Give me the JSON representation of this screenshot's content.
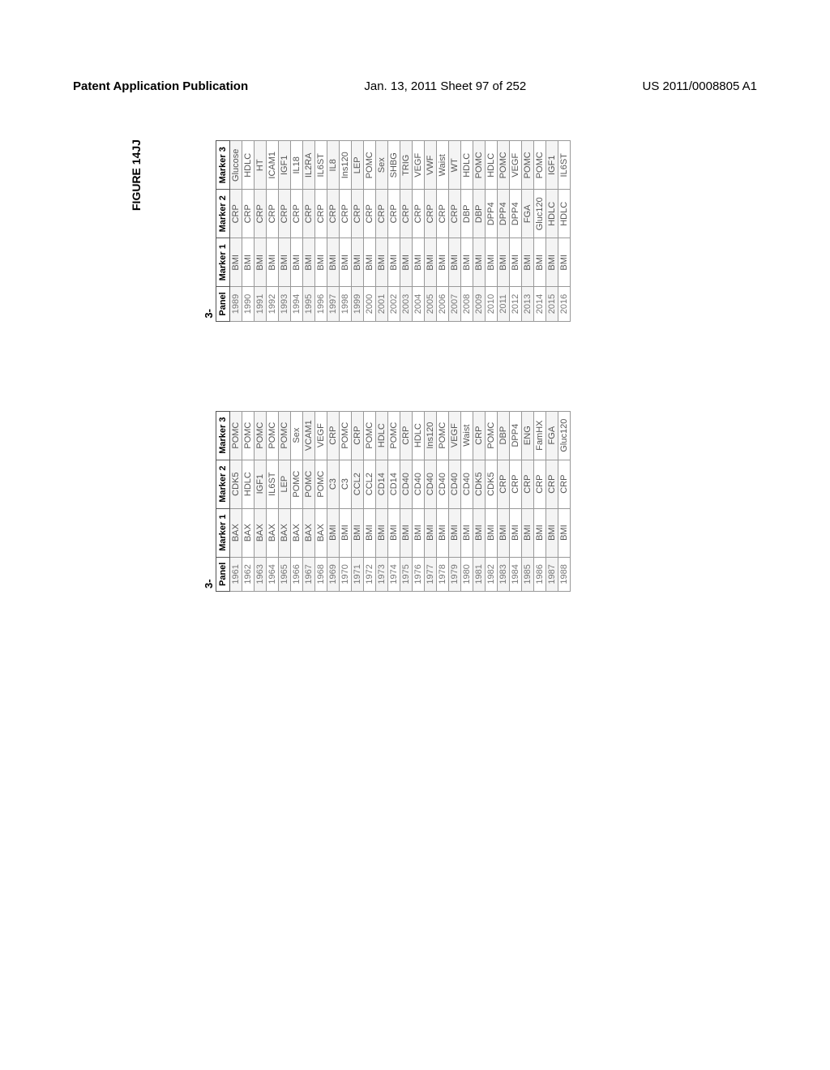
{
  "header": {
    "left": "Patent Application Publication",
    "mid": "Jan. 13, 2011  Sheet 97 of 252",
    "right": "US 2011/0008805 A1"
  },
  "figure_label": "FIGURE 14JJ",
  "panel_prefix": "3-",
  "columns": [
    "Panel",
    "Marker 1",
    "Marker 2",
    "Marker 3"
  ],
  "table1": [
    [
      "1961",
      "BAX",
      "CDK5",
      "POMC"
    ],
    [
      "1962",
      "BAX",
      "HDLC",
      "POMC"
    ],
    [
      "1963",
      "BAX",
      "IGF1",
      "POMC"
    ],
    [
      "1964",
      "BAX",
      "IL6ST",
      "POMC"
    ],
    [
      "1965",
      "BAX",
      "LEP",
      "POMC"
    ],
    [
      "1966",
      "BAX",
      "POMC",
      "Sex"
    ],
    [
      "1967",
      "BAX",
      "POMC",
      "VCAM1"
    ],
    [
      "1968",
      "BAX",
      "POMC",
      "VEGF"
    ],
    [
      "1969",
      "BMI",
      "C3",
      "CRP"
    ],
    [
      "1970",
      "BMI",
      "C3",
      "POMC"
    ],
    [
      "1971",
      "BMI",
      "CCL2",
      "CRP"
    ],
    [
      "1972",
      "BMI",
      "CCL2",
      "POMC"
    ],
    [
      "1973",
      "BMI",
      "CD14",
      "HDLC"
    ],
    [
      "1974",
      "BMI",
      "CD14",
      "POMC"
    ],
    [
      "1975",
      "BMI",
      "CD40",
      "CRP"
    ],
    [
      "1976",
      "BMI",
      "CD40",
      "HDLC"
    ],
    [
      "1977",
      "BMI",
      "CD40",
      "Ins120"
    ],
    [
      "1978",
      "BMI",
      "CD40",
      "POMC"
    ],
    [
      "1979",
      "BMI",
      "CD40",
      "VEGF"
    ],
    [
      "1980",
      "BMI",
      "CD40",
      "Waist"
    ],
    [
      "1981",
      "BMI",
      "CDK5",
      "CRP"
    ],
    [
      "1982",
      "BMI",
      "CDK5",
      "POMC"
    ],
    [
      "1983",
      "BMI",
      "CRP",
      "DBP"
    ],
    [
      "1984",
      "BMI",
      "CRP",
      "DPP4"
    ],
    [
      "1985",
      "BMI",
      "CRP",
      "ENG"
    ],
    [
      "1986",
      "BMI",
      "CRP",
      "FamHX"
    ],
    [
      "1987",
      "BMI",
      "CRP",
      "FGA"
    ],
    [
      "1988",
      "BMI",
      "CRP",
      "Gluc120"
    ]
  ],
  "table2": [
    [
      "1989",
      "BMI",
      "CRP",
      "Glucose"
    ],
    [
      "1990",
      "BMI",
      "CRP",
      "HDLC"
    ],
    [
      "1991",
      "BMI",
      "CRP",
      "HT"
    ],
    [
      "1992",
      "BMI",
      "CRP",
      "ICAM1"
    ],
    [
      "1993",
      "BMI",
      "CRP",
      "IGF1"
    ],
    [
      "1994",
      "BMI",
      "CRP",
      "IL18"
    ],
    [
      "1995",
      "BMI",
      "CRP",
      "IL2RA"
    ],
    [
      "1996",
      "BMI",
      "CRP",
      "IL6ST"
    ],
    [
      "1997",
      "BMI",
      "CRP",
      "IL8"
    ],
    [
      "1998",
      "BMI",
      "CRP",
      "Ins120"
    ],
    [
      "1999",
      "BMI",
      "CRP",
      "LEP"
    ],
    [
      "2000",
      "BMI",
      "CRP",
      "POMC"
    ],
    [
      "2001",
      "BMI",
      "CRP",
      "Sex"
    ],
    [
      "2002",
      "BMI",
      "CRP",
      "SHBG"
    ],
    [
      "2003",
      "BMI",
      "CRP",
      "TRIG"
    ],
    [
      "2004",
      "BMI",
      "CRP",
      "VEGF"
    ],
    [
      "2005",
      "BMI",
      "CRP",
      "VWF"
    ],
    [
      "2006",
      "BMI",
      "CRP",
      "Waist"
    ],
    [
      "2007",
      "BMI",
      "CRP",
      "WT"
    ],
    [
      "2008",
      "BMI",
      "DBP",
      "HDLC"
    ],
    [
      "2009",
      "BMI",
      "DBP",
      "POMC"
    ],
    [
      "2010",
      "BMI",
      "DPP4",
      "HDLC"
    ],
    [
      "2011",
      "BMI",
      "DPP4",
      "POMC"
    ],
    [
      "2012",
      "BMI",
      "DPP4",
      "VEGF"
    ],
    [
      "2013",
      "BMI",
      "FGA",
      "POMC"
    ],
    [
      "2014",
      "BMI",
      "Gluc120",
      "POMC"
    ],
    [
      "2015",
      "BMI",
      "HDLC",
      "IGF1"
    ],
    [
      "2016",
      "BMI",
      "HDLC",
      "IL6ST"
    ]
  ]
}
